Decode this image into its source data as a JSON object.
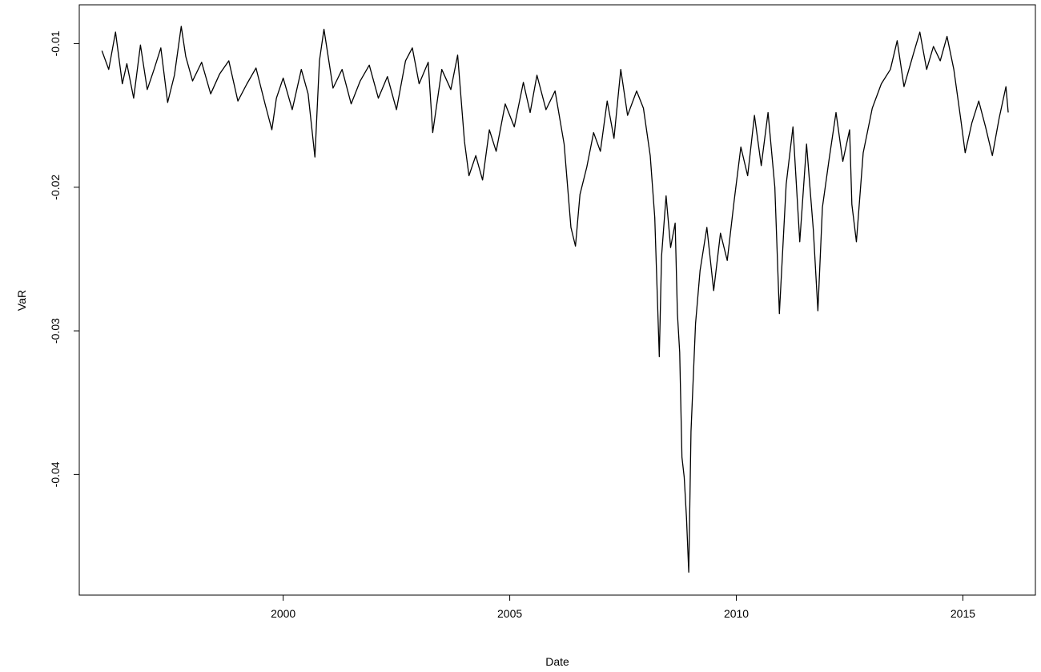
{
  "chart_data": {
    "type": "line",
    "title": "",
    "xlabel": "Date",
    "ylabel": "VaR",
    "xlim": [
      1995.5,
      2016.6
    ],
    "ylim": [
      -0.0484,
      -0.0073
    ],
    "x_ticks": [
      2000,
      2005,
      2010,
      2015
    ],
    "x_tick_labels": [
      "2000",
      "2005",
      "2010",
      "2015"
    ],
    "y_ticks": [
      -0.04,
      -0.03,
      -0.02,
      -0.01
    ],
    "y_tick_labels": [
      "-0.04",
      "-0.03",
      "-0.02",
      "-0.01"
    ],
    "grid": false,
    "legend": "none",
    "line_color": "#000000",
    "series": [
      {
        "x": [
          1996.0,
          1996.15,
          1996.3,
          1996.45,
          1996.55,
          1996.7,
          1996.85,
          1997.0,
          1997.15,
          1997.3,
          1997.45,
          1997.6,
          1997.75,
          1997.85,
          1998.0,
          1998.2,
          1998.4,
          1998.6,
          1998.8,
          1999.0,
          1999.2,
          1999.4,
          1999.6,
          1999.75,
          1999.85,
          2000.0,
          2000.2,
          2000.4,
          2000.55,
          2000.7,
          2000.8,
          2000.9,
          2001.1,
          2001.3,
          2001.5,
          2001.7,
          2001.9,
          2002.1,
          2002.3,
          2002.5,
          2002.7,
          2002.85,
          2003.0,
          2003.2,
          2003.3,
          2003.5,
          2003.7,
          2003.85,
          2004.0,
          2004.1,
          2004.25,
          2004.4,
          2004.55,
          2004.7,
          2004.9,
          2005.1,
          2005.3,
          2005.45,
          2005.6,
          2005.8,
          2006.0,
          2006.2,
          2006.35,
          2006.45,
          2006.55,
          2006.7,
          2006.85,
          2007.0,
          2007.15,
          2007.3,
          2007.45,
          2007.6,
          2007.8,
          2007.95,
          2008.1,
          2008.2,
          2008.3,
          2008.35,
          2008.45,
          2008.55,
          2008.65,
          2008.7,
          2008.75,
          2008.8,
          2008.85,
          2008.9,
          2008.95,
          2009.0,
          2009.1,
          2009.2,
          2009.35,
          2009.5,
          2009.65,
          2009.8,
          2009.95,
          2010.1,
          2010.25,
          2010.4,
          2010.55,
          2010.7,
          2010.85,
          2010.95,
          2011.1,
          2011.25,
          2011.4,
          2011.55,
          2011.7,
          2011.8,
          2011.9,
          2012.05,
          2012.2,
          2012.35,
          2012.5,
          2012.55,
          2012.65,
          2012.8,
          2013.0,
          2013.2,
          2013.4,
          2013.55,
          2013.7,
          2013.9,
          2014.05,
          2014.2,
          2014.35,
          2014.5,
          2014.65,
          2014.8,
          2014.95,
          2015.05,
          2015.2,
          2015.35,
          2015.5,
          2015.65,
          2015.8,
          2015.95,
          2016.0
        ],
        "y": [
          -0.0105,
          -0.0118,
          -0.0092,
          -0.0128,
          -0.0114,
          -0.0138,
          -0.0101,
          -0.0132,
          -0.0118,
          -0.0103,
          -0.0141,
          -0.0122,
          -0.0088,
          -0.0109,
          -0.0126,
          -0.0113,
          -0.0135,
          -0.0121,
          -0.0112,
          -0.014,
          -0.0128,
          -0.0117,
          -0.0142,
          -0.016,
          -0.0138,
          -0.0124,
          -0.0146,
          -0.0118,
          -0.0135,
          -0.0179,
          -0.0112,
          -0.009,
          -0.0131,
          -0.0118,
          -0.0142,
          -0.0126,
          -0.0115,
          -0.0138,
          -0.0123,
          -0.0146,
          -0.0112,
          -0.0103,
          -0.0128,
          -0.0113,
          -0.0162,
          -0.0118,
          -0.0132,
          -0.0108,
          -0.0168,
          -0.0192,
          -0.0178,
          -0.0195,
          -0.016,
          -0.0175,
          -0.0142,
          -0.0158,
          -0.0127,
          -0.0148,
          -0.0122,
          -0.0146,
          -0.0133,
          -0.017,
          -0.0228,
          -0.0241,
          -0.0205,
          -0.0186,
          -0.0162,
          -0.0175,
          -0.014,
          -0.0166,
          -0.0118,
          -0.015,
          -0.0133,
          -0.0145,
          -0.0178,
          -0.0221,
          -0.0318,
          -0.0248,
          -0.0206,
          -0.0242,
          -0.0225,
          -0.0288,
          -0.0315,
          -0.0388,
          -0.0402,
          -0.043,
          -0.0468,
          -0.037,
          -0.0295,
          -0.0258,
          -0.0228,
          -0.0272,
          -0.0232,
          -0.0251,
          -0.021,
          -0.0172,
          -0.0192,
          -0.015,
          -0.0185,
          -0.0148,
          -0.02,
          -0.0288,
          -0.0198,
          -0.0158,
          -0.0238,
          -0.017,
          -0.023,
          -0.0286,
          -0.0214,
          -0.018,
          -0.0148,
          -0.0182,
          -0.016,
          -0.0212,
          -0.0238,
          -0.0176,
          -0.0145,
          -0.0128,
          -0.0118,
          -0.0098,
          -0.013,
          -0.0108,
          -0.0092,
          -0.0118,
          -0.0102,
          -0.0112,
          -0.0095,
          -0.0118,
          -0.0152,
          -0.0176,
          -0.0155,
          -0.014,
          -0.0158,
          -0.0178,
          -0.0152,
          -0.013,
          -0.0148
        ]
      }
    ]
  }
}
